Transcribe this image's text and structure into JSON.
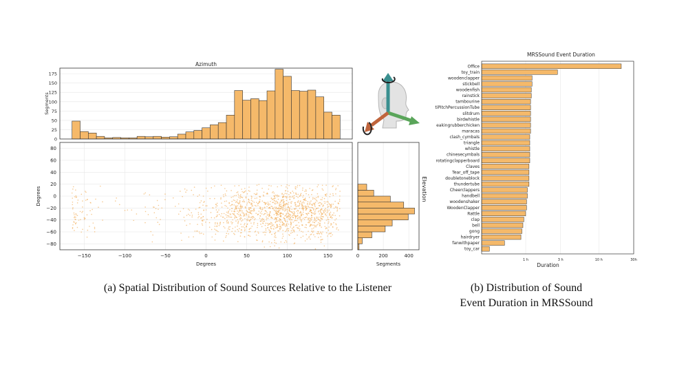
{
  "colors": {
    "bar": "#f5b96a",
    "edge": "#333333",
    "point": "#f2b160",
    "grid": "#e6e6e6"
  },
  "captions": {
    "a": "(a) Spatial Distribution of Sound Sources Relative to the Listener",
    "b_line1": "(b) Distribution of Sound",
    "b_line2": "Event Duration in MRSSound"
  },
  "head_figure": {
    "icons": [
      "head-icon",
      "vertical-axis-arrow-icon",
      "forward-axis-arrow-icon",
      "lateral-axis-arrow-icon",
      "rotation-arrow-icon"
    ]
  },
  "chart_data": [
    {
      "id": "azimuth",
      "type": "bar",
      "title": "Azimuth",
      "xlabel": "",
      "ylabel": "Segments",
      "xlim": [
        -180,
        180
      ],
      "ylim": [
        0,
        190
      ],
      "yticks": [
        0,
        25,
        50,
        75,
        100,
        125,
        150,
        175
      ],
      "bin_edges": [
        -165,
        -155,
        -145,
        -135,
        -125,
        -115,
        -105,
        -95,
        -85,
        -75,
        -65,
        -55,
        -45,
        -35,
        -25,
        -15,
        -5,
        5,
        15,
        25,
        35,
        45,
        55,
        65,
        75,
        85,
        95,
        105,
        115,
        125,
        135,
        145,
        155,
        165
      ],
      "values": [
        48,
        20,
        16,
        7,
        3,
        4,
        3,
        3,
        7,
        6,
        7,
        5,
        6,
        13,
        19,
        23,
        30,
        38,
        44,
        64,
        130,
        104,
        108,
        103,
        129,
        187,
        168,
        130,
        128,
        131,
        113,
        72,
        64
      ]
    },
    {
      "id": "scatter",
      "type": "scatter",
      "xlabel": "Degrees",
      "ylabel": "Degrees",
      "xlim": [
        -180,
        180
      ],
      "ylim": [
        -90,
        90
      ],
      "xticks": [
        -150,
        -100,
        -50,
        0,
        50,
        100,
        150
      ],
      "yticks": [
        -80,
        -60,
        -40,
        -20,
        0,
        20,
        40,
        60,
        80
      ],
      "n_points": 1500
    },
    {
      "id": "elevation",
      "type": "bar",
      "orientation": "horizontal",
      "title": "Elevation",
      "xlabel": "Segments",
      "xlim": [
        0,
        480
      ],
      "xticks": [
        0,
        200,
        400
      ],
      "bin_edges": [
        -90,
        -80,
        -70,
        -60,
        -50,
        -40,
        -30,
        -20,
        -10,
        0,
        10,
        20
      ],
      "values": [
        10,
        35,
        110,
        215,
        270,
        395,
        445,
        360,
        255,
        125,
        70
      ]
    },
    {
      "id": "duration",
      "type": "bar",
      "orientation": "horizontal",
      "title": "MRSSound Event Duration",
      "xlabel": "Duration",
      "xscale": "log",
      "xlim_seconds": [
        900,
        108000
      ],
      "xticks": [
        3600,
        10800,
        36000,
        108000
      ],
      "xtick_labels": [
        "1 h",
        "3 h",
        "10 h",
        "30h"
      ],
      "categories": [
        "Office",
        "toy_train",
        "woodenclapper",
        "stickbell",
        "woodenfish",
        "rainstick",
        "tambourine",
        "tiPitchPercussionTube",
        "slitdrum",
        "birdwhistle",
        "eakingrubberchicken",
        "maracas",
        "clash_cymbals",
        "triangle",
        "whistle",
        "chinesecymbals",
        "rotatingclapperboard",
        "Claves",
        "Tear_off_tape",
        "doubletoneblock",
        "thundertube",
        "Cheerclappers",
        "handbell",
        "woodenshaker",
        "WoodenClapper",
        "Rattle",
        "clap",
        "bell",
        "gong",
        "hairdryer",
        "fanwithpaper",
        "toy_car"
      ],
      "values_seconds": [
        73000,
        9800,
        4400,
        4400,
        4300,
        4300,
        4200,
        4200,
        4200,
        4200,
        4200,
        4200,
        4100,
        4100,
        4100,
        4100,
        4100,
        4000,
        4000,
        4000,
        4000,
        3800,
        3800,
        3700,
        3700,
        3600,
        3400,
        3300,
        3200,
        3100,
        1850,
        1150
      ]
    }
  ]
}
